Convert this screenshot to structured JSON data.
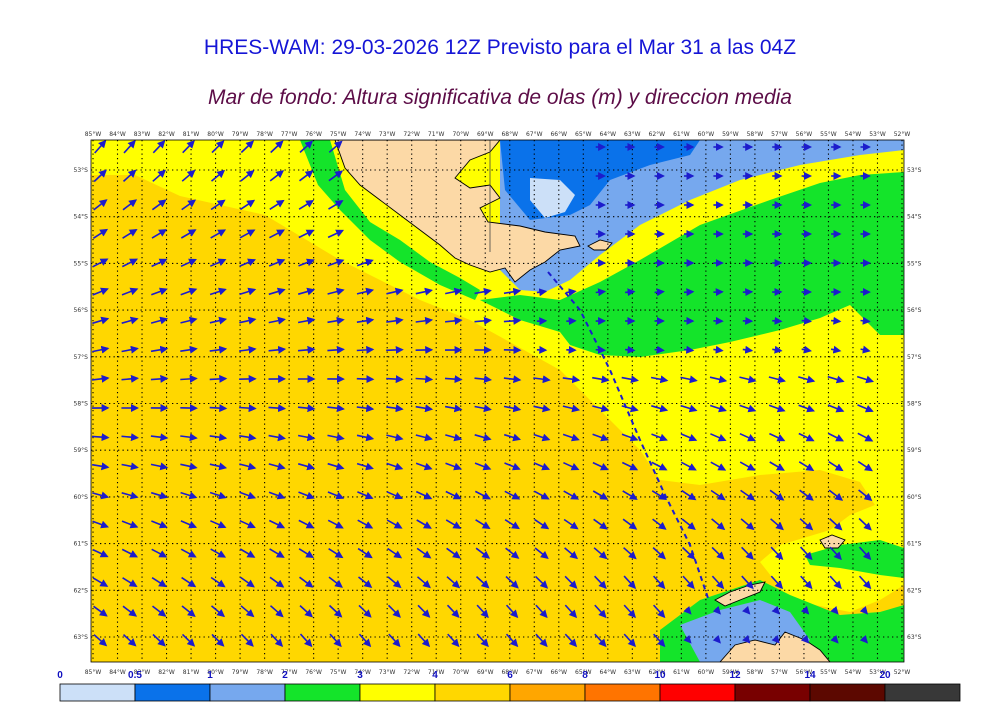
{
  "header": {
    "title": "HRES-WAM: 29-03-2026 12Z Previsto para el Mar 31 a las 04Z",
    "subtitle": "Mar de fondo: Altura significativa de olas (m) y direccion media"
  },
  "map": {
    "longitudes": [
      "85°W",
      "84°W",
      "83°W",
      "82°W",
      "81°W",
      "80°W",
      "79°W",
      "78°W",
      "77°W",
      "76°W",
      "75°W",
      "74°W",
      "73°W",
      "72°W",
      "71°W",
      "70°W",
      "69°W",
      "68°W",
      "67°W",
      "66°W",
      "65°W",
      "64°W",
      "63°W",
      "62°W",
      "61°W",
      "60°W",
      "59°W",
      "58°W",
      "57°W",
      "56°W",
      "55°W",
      "54°W",
      "53°W",
      "52°W"
    ],
    "latitudes": [
      "53°S",
      "54°S",
      "55°S",
      "56°S",
      "57°S",
      "58°S",
      "59°S",
      "60°S",
      "61°S",
      "62°S",
      "63°S"
    ],
    "colors": {
      "land": "#fcd9a6",
      "coast": "#000000",
      "arrow": "#1c1ccc",
      "grid": "#000000"
    }
  },
  "legend": {
    "labels": [
      "0",
      "0.5",
      "1",
      "2",
      "3",
      "4",
      "6",
      "8",
      "10",
      "12",
      "14",
      "20"
    ],
    "colors": [
      "#cce0f8",
      "#0a72ea",
      "#76a8ee",
      "#14e42a",
      "#ffff00",
      "#ffd700",
      "#ffa600",
      "#ff7400",
      "#ff0000",
      "#780000",
      "#5c0800",
      "#383838"
    ]
  }
}
